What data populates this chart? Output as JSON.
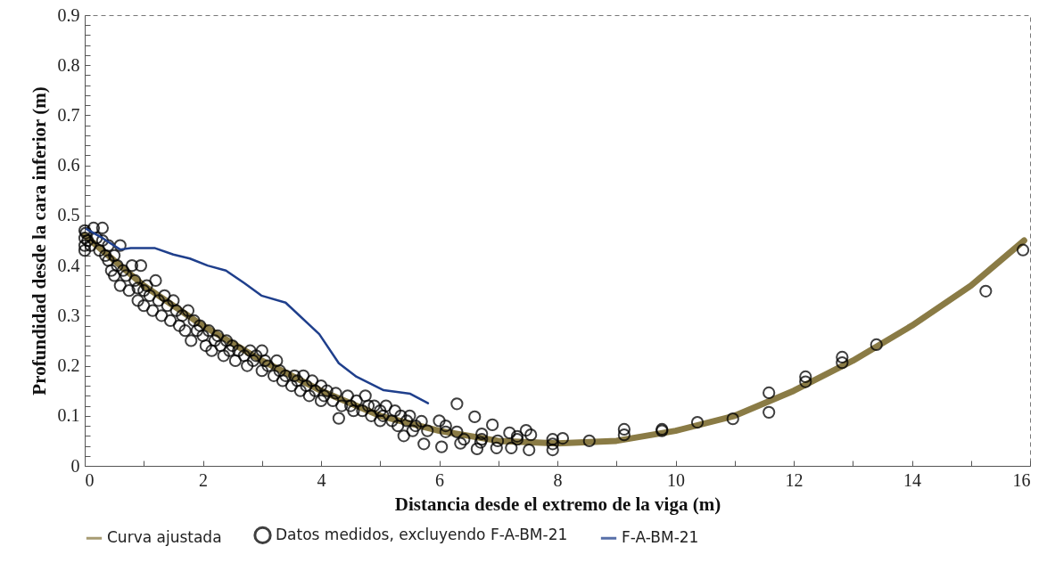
{
  "chart_data": {
    "type": "scatter",
    "xlabel": "Distancia desde el extremo de la viga (m)",
    "ylabel": "Profundidad desde la cara inferior (m)",
    "xlim": [
      0,
      16
    ],
    "xticks": [
      0,
      {
        "value": 1,
        "label": null
      },
      2,
      {
        "value": 3,
        "label": null
      },
      4,
      {
        "value": 5,
        "label": null
      },
      6,
      {
        "value": 7,
        "label": null
      },
      8,
      {
        "value": 9,
        "label": null
      },
      10,
      {
        "value": 11,
        "label": null
      },
      12,
      {
        "value": 13,
        "label": null
      },
      14,
      {
        "value": 15,
        "label": null
      },
      16
    ],
    "ylim": [
      0,
      0.9
    ],
    "yticks": [
      0,
      {
        "value": 0.02,
        "label": null
      },
      {
        "value": 0.04,
        "label": null
      },
      {
        "value": 0.06,
        "label": null
      },
      {
        "value": 0.08,
        "label": null
      },
      0.1,
      {
        "value": 0.12,
        "label": null
      },
      {
        "value": 0.14,
        "label": null
      },
      {
        "value": 0.16,
        "label": null
      },
      {
        "value": 0.18,
        "label": null
      },
      0.2,
      {
        "value": 0.22,
        "label": null
      },
      {
        "value": 0.24,
        "label": null
      },
      {
        "value": 0.26,
        "label": null
      },
      {
        "value": 0.28,
        "label": null
      },
      0.3,
      {
        "value": 0.32,
        "label": null
      },
      {
        "value": 0.34,
        "label": null
      },
      {
        "value": 0.36,
        "label": null
      },
      {
        "value": 0.38,
        "label": null
      },
      0.4,
      {
        "value": 0.42,
        "label": null
      },
      {
        "value": 0.44,
        "label": null
      },
      {
        "value": 0.46,
        "label": null
      },
      {
        "value": 0.48,
        "label": null
      },
      0.5,
      {
        "value": 0.52,
        "label": null
      },
      {
        "value": 0.54,
        "label": null
      },
      {
        "value": 0.56,
        "label": null
      },
      {
        "value": 0.58,
        "label": null
      },
      0.6,
      {
        "value": 0.62,
        "label": null
      },
      {
        "value": 0.64,
        "label": null
      },
      {
        "value": 0.66,
        "label": null
      },
      {
        "value": 0.68,
        "label": null
      },
      0.7,
      {
        "value": 0.72,
        "label": null
      },
      {
        "value": 0.74,
        "label": null
      },
      {
        "value": 0.76,
        "label": null
      },
      {
        "value": 0.78,
        "label": null
      },
      0.8,
      {
        "value": 0.82,
        "label": null
      },
      {
        "value": 0.84,
        "label": null
      },
      {
        "value": 0.86,
        "label": null
      },
      {
        "value": 0.88,
        "label": null
      },
      0.9
    ],
    "grid": false,
    "legend": "bottom",
    "series": [
      {
        "name": "Curva ajustada",
        "type": "line",
        "color": "#8a7b45",
        "marker": "none",
        "line_style": "solid",
        "x": [
          0,
          1,
          2,
          3,
          4,
          5,
          6,
          7,
          8,
          9,
          10,
          11,
          12,
          13,
          14,
          15,
          15.9
        ],
        "values": [
          0.46,
          0.36,
          0.28,
          0.21,
          0.15,
          0.1,
          0.07,
          0.05,
          0.045,
          0.05,
          0.07,
          0.1,
          0.15,
          0.21,
          0.28,
          0.36,
          0.45
        ]
      },
      {
        "name": "Datos medidos, excluyendo F-A-BM-21",
        "color": "#000000",
        "marker": "circle",
        "x": [
          0,
          0,
          0,
          0,
          0.02,
          0.05,
          0.1,
          0.15,
          0.2,
          0.25,
          0.3,
          0.3,
          0.35,
          0.4,
          0.4,
          0.45,
          0.5,
          0.5,
          0.55,
          0.6,
          0.6,
          0.65,
          0.7,
          0.75,
          0.8,
          0.85,
          0.9,
          0.9,
          0.95,
          1.0,
          1.0,
          1.05,
          1.1,
          1.15,
          1.2,
          1.25,
          1.3,
          1.35,
          1.4,
          1.45,
          1.5,
          1.55,
          1.6,
          1.65,
          1.7,
          1.75,
          1.8,
          1.85,
          1.9,
          1.95,
          2.0,
          2.05,
          2.1,
          2.15,
          2.2,
          2.25,
          2.3,
          2.35,
          2.4,
          2.45,
          2.5,
          2.55,
          2.6,
          2.7,
          2.75,
          2.8,
          2.85,
          2.9,
          3.0,
          3.0,
          3.05,
          3.1,
          3.2,
          3.25,
          3.3,
          3.35,
          3.4,
          3.5,
          3.55,
          3.6,
          3.65,
          3.7,
          3.75,
          3.8,
          3.85,
          3.9,
          4.0,
          4.0,
          4.05,
          4.1,
          4.2,
          4.25,
          4.3,
          4.35,
          4.45,
          4.5,
          4.55,
          4.6,
          4.7,
          4.75,
          4.8,
          4.85,
          4.9,
          5.0,
          5.0,
          5.05,
          5.1,
          5.2,
          5.25,
          5.3,
          5.35,
          5.4,
          5.45,
          5.5,
          5.55,
          5.6,
          5.7,
          5.74,
          5.8,
          6.0,
          6.04,
          6.11,
          6.11,
          6.3,
          6.3,
          6.36,
          6.42,
          6.6,
          6.64,
          6.7,
          6.72,
          6.72,
          6.9,
          6.97,
          6.99,
          7.19,
          7.22,
          7.32,
          7.32,
          7.47,
          7.52,
          7.55,
          7.92,
          7.92,
          7.92,
          8.09,
          8.54,
          9.13,
          9.13,
          9.77,
          9.77,
          10.37,
          10.97,
          11.58,
          11.58,
          12.2,
          12.2,
          12.82,
          12.82,
          13.4,
          15.25,
          15.88
        ],
        "values": [
          0.47,
          0.455,
          0.44,
          0.43,
          0.465,
          0.45,
          0.44,
          0.475,
          0.455,
          0.43,
          0.475,
          0.45,
          0.42,
          0.41,
          0.44,
          0.39,
          0.38,
          0.42,
          0.4,
          0.36,
          0.44,
          0.39,
          0.38,
          0.35,
          0.4,
          0.37,
          0.33,
          0.355,
          0.4,
          0.35,
          0.32,
          0.36,
          0.34,
          0.31,
          0.37,
          0.33,
          0.3,
          0.34,
          0.32,
          0.29,
          0.33,
          0.31,
          0.28,
          0.3,
          0.27,
          0.31,
          0.25,
          0.29,
          0.27,
          0.28,
          0.26,
          0.24,
          0.27,
          0.23,
          0.25,
          0.26,
          0.24,
          0.22,
          0.25,
          0.23,
          0.24,
          0.21,
          0.23,
          0.22,
          0.2,
          0.23,
          0.21,
          0.22,
          0.19,
          0.23,
          0.21,
          0.2,
          0.18,
          0.21,
          0.19,
          0.17,
          0.18,
          0.16,
          0.18,
          0.17,
          0.15,
          0.18,
          0.16,
          0.14,
          0.17,
          0.15,
          0.13,
          0.16,
          0.14,
          0.15,
          0.13,
          0.145,
          0.095,
          0.12,
          0.14,
          0.12,
          0.11,
          0.13,
          0.11,
          0.14,
          0.12,
          0.1,
          0.12,
          0.09,
          0.11,
          0.1,
          0.12,
          0.09,
          0.11,
          0.08,
          0.1,
          0.06,
          0.09,
          0.1,
          0.07,
          0.08,
          0.089,
          0.044,
          0.07,
          0.09,
          0.038,
          0.08,
          0.068,
          0.124,
          0.068,
          0.045,
          0.053,
          0.098,
          0.034,
          0.047,
          0.064,
          0.053,
          0.082,
          0.036,
          0.05,
          0.066,
          0.036,
          0.059,
          0.053,
          0.071,
          0.032,
          0.062,
          0.053,
          0.044,
          0.032,
          0.055,
          0.05,
          0.073,
          0.062,
          0.073,
          0.07,
          0.087,
          0.094,
          0.107,
          0.146,
          0.178,
          0.168,
          0.217,
          0.206,
          0.242,
          0.349,
          0.431
        ]
      },
      {
        "name": "F-A-BM-21",
        "type": "line",
        "color": "#1f3f8c",
        "marker": "none",
        "line_style": "solid",
        "x": [
          0.03,
          0.3,
          0.6,
          0.78,
          1.18,
          1.5,
          1.78,
          2.08,
          2.39,
          2.7,
          2.99,
          3.4,
          3.97,
          4.3,
          4.6,
          5.06,
          5.51,
          5.81
        ],
        "values": [
          0.473,
          0.455,
          0.432,
          0.435,
          0.435,
          0.422,
          0.414,
          0.4,
          0.39,
          0.365,
          0.34,
          0.326,
          0.263,
          0.205,
          0.178,
          0.151,
          0.144,
          0.125
        ]
      }
    ]
  }
}
